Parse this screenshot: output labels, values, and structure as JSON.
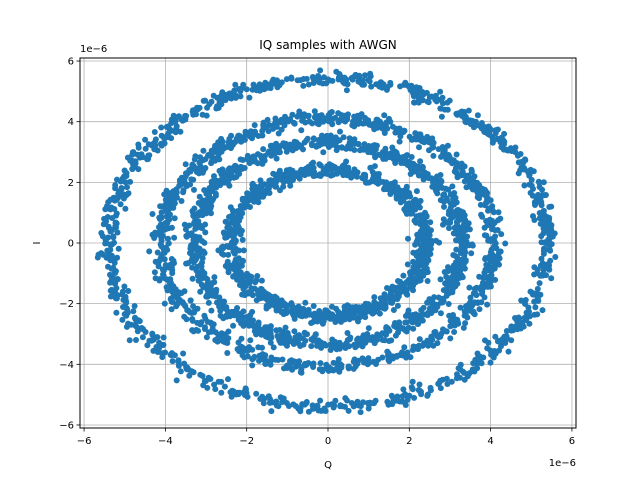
{
  "chart_data": {
    "type": "scatter",
    "title": "IQ samples with AWGN",
    "xlabel": "Q",
    "ylabel": "I",
    "xlim": [
      -6.1e-06,
      6.1e-06
    ],
    "ylim": [
      -6.1e-06,
      6.1e-06
    ],
    "x_ticks": [
      -6e-06,
      -4e-06,
      -2e-06,
      0,
      2e-06,
      4e-06,
      6e-06
    ],
    "y_ticks": [
      -6e-06,
      -4e-06,
      -2e-06,
      0,
      2e-06,
      4e-06,
      6e-06
    ],
    "x_tick_labels": [
      "−6",
      "−4",
      "−2",
      "0",
      "2",
      "4",
      "6"
    ],
    "y_tick_labels": [
      "−6",
      "−4",
      "−2",
      "0",
      "2",
      "4",
      "6"
    ],
    "x_offset_label": "1e−6",
    "y_offset_label": "1e−6",
    "grid": true,
    "series": [
      {
        "color": "#1f77b4",
        "rings": [
          {
            "radius": 2.4e-06,
            "noise_spread": 3.5e-07
          },
          {
            "radius": 3.3e-06,
            "noise_spread": 3.5e-07
          },
          {
            "radius": 4.1e-06,
            "noise_spread": 3.5e-07
          },
          {
            "radius": 5.4e-06,
            "noise_spread": 3.5e-07
          }
        ]
      }
    ]
  }
}
